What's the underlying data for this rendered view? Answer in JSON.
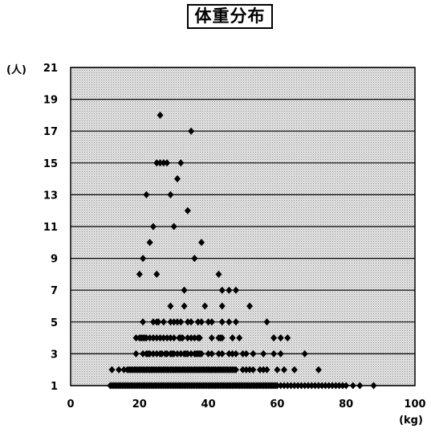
{
  "chart_data": {
    "type": "scatter",
    "title": "体重分布",
    "x_unit": "(kg)",
    "y_unit": "(人)",
    "xlim": [
      0,
      100
    ],
    "ylim": [
      1,
      21
    ],
    "x_ticks": [
      "0",
      "20",
      "40",
      "60",
      "80",
      "100"
    ],
    "y_ticks": [
      "1",
      "3",
      "5",
      "7",
      "9",
      "11",
      "13",
      "15",
      "17",
      "19",
      "21"
    ],
    "grid": "horizontal lines at odd counts",
    "legend": "none",
    "colors": {
      "marker": "#000000",
      "plot_background": "#d8d8d8",
      "gridline": "#000000"
    },
    "points": [
      {
        "x": 11.5,
        "y": 1
      },
      {
        "x": 12,
        "y": 1
      },
      {
        "x": 12.5,
        "y": 1
      },
      {
        "x": 13,
        "y": 1
      },
      {
        "x": 13.5,
        "y": 1
      },
      {
        "x": 14,
        "y": 1
      },
      {
        "x": 14.5,
        "y": 1
      },
      {
        "x": 15,
        "y": 1
      },
      {
        "x": 15.5,
        "y": 1
      },
      {
        "x": 16,
        "y": 1
      },
      {
        "x": 16.5,
        "y": 1
      },
      {
        "x": 17,
        "y": 1
      },
      {
        "x": 17.5,
        "y": 1
      },
      {
        "x": 18,
        "y": 1
      },
      {
        "x": 18.5,
        "y": 1
      },
      {
        "x": 19,
        "y": 1
      },
      {
        "x": 19.5,
        "y": 1
      },
      {
        "x": 20,
        "y": 1
      },
      {
        "x": 20.5,
        "y": 1
      },
      {
        "x": 21,
        "y": 1
      },
      {
        "x": 21.5,
        "y": 1
      },
      {
        "x": 22,
        "y": 1
      },
      {
        "x": 22.5,
        "y": 1
      },
      {
        "x": 23,
        "y": 1
      },
      {
        "x": 23.5,
        "y": 1
      },
      {
        "x": 24,
        "y": 1
      },
      {
        "x": 24.5,
        "y": 1
      },
      {
        "x": 25,
        "y": 1
      },
      {
        "x": 25.5,
        "y": 1
      },
      {
        "x": 26,
        "y": 1
      },
      {
        "x": 26.5,
        "y": 1
      },
      {
        "x": 27,
        "y": 1
      },
      {
        "x": 27.5,
        "y": 1
      },
      {
        "x": 28,
        "y": 1
      },
      {
        "x": 28.5,
        "y": 1
      },
      {
        "x": 29,
        "y": 1
      },
      {
        "x": 29.5,
        "y": 1
      },
      {
        "x": 30,
        "y": 1
      },
      {
        "x": 30.5,
        "y": 1
      },
      {
        "x": 31,
        "y": 1
      },
      {
        "x": 31.5,
        "y": 1
      },
      {
        "x": 32,
        "y": 1
      },
      {
        "x": 32.5,
        "y": 1
      },
      {
        "x": 33,
        "y": 1
      },
      {
        "x": 33.5,
        "y": 1
      },
      {
        "x": 34,
        "y": 1
      },
      {
        "x": 34.5,
        "y": 1
      },
      {
        "x": 35,
        "y": 1
      },
      {
        "x": 35.5,
        "y": 1
      },
      {
        "x": 36,
        "y": 1
      },
      {
        "x": 36.5,
        "y": 1
      },
      {
        "x": 37,
        "y": 1
      },
      {
        "x": 37.5,
        "y": 1
      },
      {
        "x": 38,
        "y": 1
      },
      {
        "x": 38.5,
        "y": 1
      },
      {
        "x": 39,
        "y": 1
      },
      {
        "x": 39.5,
        "y": 1
      },
      {
        "x": 40,
        "y": 1
      },
      {
        "x": 40.5,
        "y": 1
      },
      {
        "x": 41,
        "y": 1
      },
      {
        "x": 41.5,
        "y": 1
      },
      {
        "x": 42,
        "y": 1
      },
      {
        "x": 42.5,
        "y": 1
      },
      {
        "x": 43,
        "y": 1
      },
      {
        "x": 43.5,
        "y": 1
      },
      {
        "x": 44,
        "y": 1
      },
      {
        "x": 44.5,
        "y": 1
      },
      {
        "x": 45,
        "y": 1
      },
      {
        "x": 45.5,
        "y": 1
      },
      {
        "x": 46,
        "y": 1
      },
      {
        "x": 46.5,
        "y": 1
      },
      {
        "x": 47,
        "y": 1
      },
      {
        "x": 47.5,
        "y": 1
      },
      {
        "x": 48,
        "y": 1
      },
      {
        "x": 48.5,
        "y": 1
      },
      {
        "x": 49,
        "y": 1
      },
      {
        "x": 49.5,
        "y": 1
      },
      {
        "x": 50,
        "y": 1
      },
      {
        "x": 50.5,
        "y": 1
      },
      {
        "x": 51,
        "y": 1
      },
      {
        "x": 51.5,
        "y": 1
      },
      {
        "x": 52,
        "y": 1
      },
      {
        "x": 52.5,
        "y": 1
      },
      {
        "x": 53,
        "y": 1
      },
      {
        "x": 53.5,
        "y": 1
      },
      {
        "x": 54,
        "y": 1
      },
      {
        "x": 54.5,
        "y": 1
      },
      {
        "x": 55,
        "y": 1
      },
      {
        "x": 55.5,
        "y": 1
      },
      {
        "x": 56,
        "y": 1
      },
      {
        "x": 56.5,
        "y": 1
      },
      {
        "x": 57,
        "y": 1
      },
      {
        "x": 57.5,
        "y": 1
      },
      {
        "x": 58,
        "y": 1
      },
      {
        "x": 58.5,
        "y": 1
      },
      {
        "x": 59,
        "y": 1
      },
      {
        "x": 59.5,
        "y": 1
      },
      {
        "x": 60,
        "y": 1
      },
      {
        "x": 61,
        "y": 1
      },
      {
        "x": 62,
        "y": 1
      },
      {
        "x": 63,
        "y": 1
      },
      {
        "x": 64,
        "y": 1
      },
      {
        "x": 65,
        "y": 1
      },
      {
        "x": 66,
        "y": 1
      },
      {
        "x": 67,
        "y": 1
      },
      {
        "x": 68,
        "y": 1
      },
      {
        "x": 69,
        "y": 1
      },
      {
        "x": 70,
        "y": 1
      },
      {
        "x": 71,
        "y": 1
      },
      {
        "x": 72,
        "y": 1
      },
      {
        "x": 73,
        "y": 1
      },
      {
        "x": 74,
        "y": 1
      },
      {
        "x": 75,
        "y": 1
      },
      {
        "x": 76,
        "y": 1
      },
      {
        "x": 77,
        "y": 1
      },
      {
        "x": 78,
        "y": 1
      },
      {
        "x": 79,
        "y": 1
      },
      {
        "x": 80,
        "y": 1
      },
      {
        "x": 82,
        "y": 1
      },
      {
        "x": 84,
        "y": 1
      },
      {
        "x": 88,
        "y": 1
      },
      {
        "x": 12,
        "y": 2
      },
      {
        "x": 14,
        "y": 2
      },
      {
        "x": 15.5,
        "y": 2
      },
      {
        "x": 16.5,
        "y": 2
      },
      {
        "x": 17,
        "y": 2
      },
      {
        "x": 17.5,
        "y": 2
      },
      {
        "x": 18,
        "y": 2
      },
      {
        "x": 18.5,
        "y": 2
      },
      {
        "x": 19,
        "y": 2
      },
      {
        "x": 19.5,
        "y": 2
      },
      {
        "x": 20,
        "y": 2
      },
      {
        "x": 20.5,
        "y": 2
      },
      {
        "x": 21,
        "y": 2
      },
      {
        "x": 21.5,
        "y": 2
      },
      {
        "x": 22,
        "y": 2
      },
      {
        "x": 22.5,
        "y": 2
      },
      {
        "x": 23,
        "y": 2
      },
      {
        "x": 23.5,
        "y": 2
      },
      {
        "x": 24,
        "y": 2
      },
      {
        "x": 24.5,
        "y": 2
      },
      {
        "x": 25,
        "y": 2
      },
      {
        "x": 25.5,
        "y": 2
      },
      {
        "x": 26,
        "y": 2
      },
      {
        "x": 26.5,
        "y": 2
      },
      {
        "x": 27,
        "y": 2
      },
      {
        "x": 27.5,
        "y": 2
      },
      {
        "x": 28,
        "y": 2
      },
      {
        "x": 28.5,
        "y": 2
      },
      {
        "x": 29,
        "y": 2
      },
      {
        "x": 29.5,
        "y": 2
      },
      {
        "x": 30,
        "y": 2
      },
      {
        "x": 30.5,
        "y": 2
      },
      {
        "x": 31,
        "y": 2
      },
      {
        "x": 31.5,
        "y": 2
      },
      {
        "x": 32,
        "y": 2
      },
      {
        "x": 32.5,
        "y": 2
      },
      {
        "x": 33,
        "y": 2
      },
      {
        "x": 33.5,
        "y": 2
      },
      {
        "x": 34,
        "y": 2
      },
      {
        "x": 34.5,
        "y": 2
      },
      {
        "x": 35,
        "y": 2
      },
      {
        "x": 35.5,
        "y": 2
      },
      {
        "x": 36,
        "y": 2
      },
      {
        "x": 36.5,
        "y": 2
      },
      {
        "x": 37,
        "y": 2
      },
      {
        "x": 37.5,
        "y": 2
      },
      {
        "x": 38,
        "y": 2
      },
      {
        "x": 38.5,
        "y": 2
      },
      {
        "x": 39,
        "y": 2
      },
      {
        "x": 39.5,
        "y": 2
      },
      {
        "x": 40,
        "y": 2
      },
      {
        "x": 40.5,
        "y": 2
      },
      {
        "x": 41,
        "y": 2
      },
      {
        "x": 41.5,
        "y": 2
      },
      {
        "x": 42,
        "y": 2
      },
      {
        "x": 42.5,
        "y": 2
      },
      {
        "x": 43,
        "y": 2
      },
      {
        "x": 43.5,
        "y": 2
      },
      {
        "x": 44,
        "y": 2
      },
      {
        "x": 44.5,
        "y": 2
      },
      {
        "x": 45,
        "y": 2
      },
      {
        "x": 45.5,
        "y": 2
      },
      {
        "x": 46,
        "y": 2
      },
      {
        "x": 46.5,
        "y": 2
      },
      {
        "x": 47,
        "y": 2
      },
      {
        "x": 47.5,
        "y": 2
      },
      {
        "x": 48,
        "y": 2
      },
      {
        "x": 50,
        "y": 2
      },
      {
        "x": 51,
        "y": 2
      },
      {
        "x": 52,
        "y": 2
      },
      {
        "x": 53,
        "y": 2
      },
      {
        "x": 55,
        "y": 2
      },
      {
        "x": 56,
        "y": 2
      },
      {
        "x": 57,
        "y": 2
      },
      {
        "x": 60,
        "y": 2
      },
      {
        "x": 62,
        "y": 2
      },
      {
        "x": 65,
        "y": 2
      },
      {
        "x": 72,
        "y": 2
      },
      {
        "x": 19,
        "y": 3
      },
      {
        "x": 21,
        "y": 3
      },
      {
        "x": 22,
        "y": 3
      },
      {
        "x": 22.5,
        "y": 3
      },
      {
        "x": 23,
        "y": 3
      },
      {
        "x": 24,
        "y": 3
      },
      {
        "x": 25,
        "y": 3
      },
      {
        "x": 26,
        "y": 3
      },
      {
        "x": 26.5,
        "y": 3
      },
      {
        "x": 27.5,
        "y": 3
      },
      {
        "x": 28,
        "y": 3
      },
      {
        "x": 29,
        "y": 3
      },
      {
        "x": 29.5,
        "y": 3
      },
      {
        "x": 30,
        "y": 3
      },
      {
        "x": 31,
        "y": 3
      },
      {
        "x": 32,
        "y": 3
      },
      {
        "x": 33,
        "y": 3
      },
      {
        "x": 33.5,
        "y": 3
      },
      {
        "x": 34,
        "y": 3
      },
      {
        "x": 35,
        "y": 3
      },
      {
        "x": 36,
        "y": 3
      },
      {
        "x": 36.5,
        "y": 3
      },
      {
        "x": 37,
        "y": 3
      },
      {
        "x": 37.5,
        "y": 3
      },
      {
        "x": 38,
        "y": 3
      },
      {
        "x": 40,
        "y": 3
      },
      {
        "x": 41,
        "y": 3
      },
      {
        "x": 43,
        "y": 3
      },
      {
        "x": 44,
        "y": 3
      },
      {
        "x": 46,
        "y": 3
      },
      {
        "x": 47,
        "y": 3
      },
      {
        "x": 48,
        "y": 3
      },
      {
        "x": 50,
        "y": 3
      },
      {
        "x": 51,
        "y": 3
      },
      {
        "x": 53,
        "y": 3
      },
      {
        "x": 56,
        "y": 3
      },
      {
        "x": 59,
        "y": 3
      },
      {
        "x": 61,
        "y": 3
      },
      {
        "x": 68,
        "y": 3
      },
      {
        "x": 19,
        "y": 4
      },
      {
        "x": 20,
        "y": 4
      },
      {
        "x": 20.5,
        "y": 4
      },
      {
        "x": 21,
        "y": 4
      },
      {
        "x": 21.5,
        "y": 4
      },
      {
        "x": 22,
        "y": 4
      },
      {
        "x": 23,
        "y": 4
      },
      {
        "x": 24,
        "y": 4
      },
      {
        "x": 25,
        "y": 4
      },
      {
        "x": 26,
        "y": 4
      },
      {
        "x": 27,
        "y": 4
      },
      {
        "x": 28,
        "y": 4
      },
      {
        "x": 29,
        "y": 4
      },
      {
        "x": 30,
        "y": 4
      },
      {
        "x": 31.5,
        "y": 4
      },
      {
        "x": 32,
        "y": 4
      },
      {
        "x": 32.5,
        "y": 4
      },
      {
        "x": 34,
        "y": 4
      },
      {
        "x": 35,
        "y": 4
      },
      {
        "x": 36,
        "y": 4
      },
      {
        "x": 37,
        "y": 4
      },
      {
        "x": 37.5,
        "y": 4
      },
      {
        "x": 41,
        "y": 4
      },
      {
        "x": 43,
        "y": 4
      },
      {
        "x": 43.5,
        "y": 4
      },
      {
        "x": 44,
        "y": 4
      },
      {
        "x": 47,
        "y": 4
      },
      {
        "x": 49,
        "y": 4
      },
      {
        "x": 59,
        "y": 4
      },
      {
        "x": 61,
        "y": 4
      },
      {
        "x": 63,
        "y": 4
      },
      {
        "x": 21,
        "y": 5
      },
      {
        "x": 24,
        "y": 5
      },
      {
        "x": 25,
        "y": 5
      },
      {
        "x": 25.5,
        "y": 5
      },
      {
        "x": 27,
        "y": 5
      },
      {
        "x": 29,
        "y": 5
      },
      {
        "x": 30,
        "y": 5
      },
      {
        "x": 31,
        "y": 5
      },
      {
        "x": 32,
        "y": 5
      },
      {
        "x": 34,
        "y": 5
      },
      {
        "x": 35,
        "y": 5
      },
      {
        "x": 37,
        "y": 5
      },
      {
        "x": 38,
        "y": 5
      },
      {
        "x": 40,
        "y": 5
      },
      {
        "x": 41,
        "y": 5
      },
      {
        "x": 44,
        "y": 5
      },
      {
        "x": 46,
        "y": 5
      },
      {
        "x": 48,
        "y": 5
      },
      {
        "x": 57,
        "y": 5
      },
      {
        "x": 29,
        "y": 6
      },
      {
        "x": 33,
        "y": 6
      },
      {
        "x": 39,
        "y": 6
      },
      {
        "x": 44,
        "y": 6
      },
      {
        "x": 52,
        "y": 6
      },
      {
        "x": 33,
        "y": 7
      },
      {
        "x": 44,
        "y": 7
      },
      {
        "x": 46,
        "y": 7
      },
      {
        "x": 48,
        "y": 7
      },
      {
        "x": 20,
        "y": 8
      },
      {
        "x": 25,
        "y": 8
      },
      {
        "x": 43,
        "y": 8
      },
      {
        "x": 21,
        "y": 9
      },
      {
        "x": 36,
        "y": 9
      },
      {
        "x": 23,
        "y": 10
      },
      {
        "x": 38,
        "y": 10
      },
      {
        "x": 24,
        "y": 11
      },
      {
        "x": 30,
        "y": 11
      },
      {
        "x": 34,
        "y": 12
      },
      {
        "x": 22,
        "y": 13
      },
      {
        "x": 29,
        "y": 13
      },
      {
        "x": 31,
        "y": 14
      },
      {
        "x": 25,
        "y": 15
      },
      {
        "x": 26,
        "y": 15
      },
      {
        "x": 27,
        "y": 15
      },
      {
        "x": 28,
        "y": 15
      },
      {
        "x": 32,
        "y": 15
      },
      {
        "x": 35,
        "y": 17
      },
      {
        "x": 26,
        "y": 18
      }
    ]
  }
}
